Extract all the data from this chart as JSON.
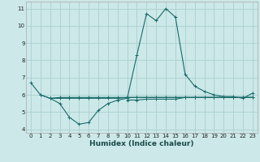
{
  "xlabel": "Humidex (Indice chaleur)",
  "ylabel": "",
  "background_color": "#cce8e8",
  "grid_color": "#aad0d0",
  "line_color": "#1a6b6b",
  "xlim": [
    -0.5,
    23.5
  ],
  "ylim": [
    3.8,
    11.4
  ],
  "yticks": [
    4,
    5,
    6,
    7,
    8,
    9,
    10,
    11
  ],
  "xticks": [
    0,
    1,
    2,
    3,
    4,
    5,
    6,
    7,
    8,
    9,
    10,
    11,
    12,
    13,
    14,
    15,
    16,
    17,
    18,
    19,
    20,
    21,
    22,
    23
  ],
  "series": [
    [
      6.7,
      6.0,
      5.8,
      5.5,
      4.7,
      4.3,
      4.4,
      5.1,
      5.5,
      5.7,
      5.8,
      8.3,
      10.7,
      10.3,
      11.0,
      10.5,
      7.2,
      6.5,
      6.2,
      6.0,
      5.9,
      5.9,
      5.8,
      6.1
    ],
    [
      null,
      6.0,
      5.8,
      5.85,
      5.85,
      5.85,
      5.85,
      5.85,
      5.85,
      5.85,
      5.85,
      5.85,
      5.85,
      5.85,
      5.85,
      5.85,
      5.85,
      5.85,
      5.85,
      5.85,
      5.85,
      5.85,
      5.85,
      5.85
    ],
    [
      null,
      null,
      5.8,
      5.8,
      5.8,
      5.8,
      5.8,
      5.8,
      5.8,
      5.8,
      5.85,
      5.85,
      5.85,
      5.85,
      5.85,
      5.85,
      5.85,
      5.85,
      5.85,
      5.85,
      5.85,
      5.85,
      5.85,
      5.85
    ],
    [
      null,
      null,
      null,
      null,
      null,
      null,
      null,
      null,
      null,
      null,
      5.7,
      5.7,
      5.75,
      5.75,
      5.75,
      5.75,
      5.85,
      5.85,
      5.85,
      5.85,
      5.85,
      5.85,
      5.85,
      5.85
    ]
  ]
}
